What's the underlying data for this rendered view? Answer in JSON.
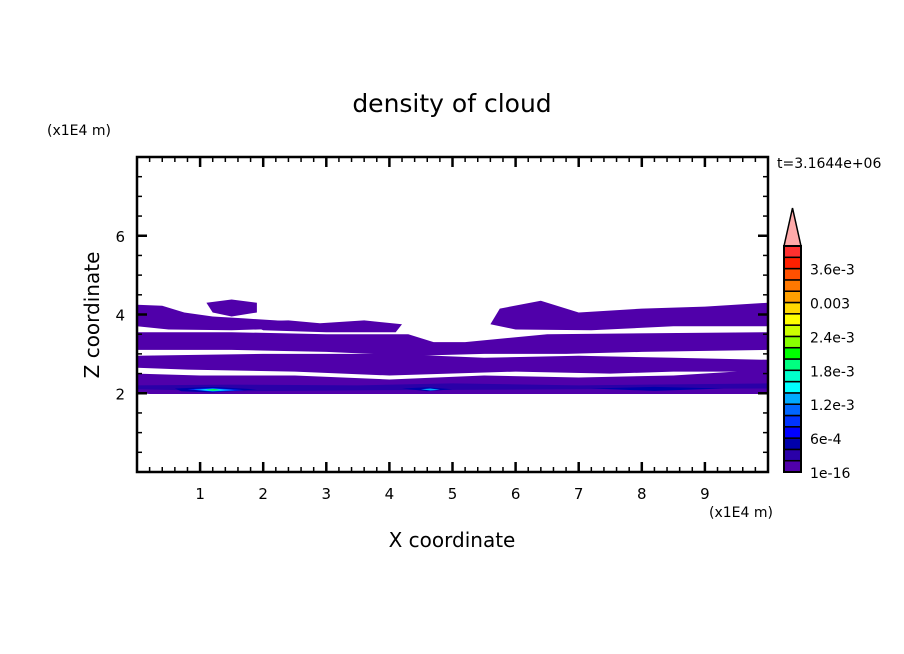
{
  "chart_data": {
    "type": "heatmap",
    "subtype": "filled-contour",
    "title": "density of cloud",
    "xlabel": "X coordinate",
    "ylabel": "Z coordinate",
    "x_unit": "(x1E4 m)",
    "y_unit": "(x1E4 m)",
    "time_label": "t=3.1644e+06",
    "xlim": [
      0,
      10
    ],
    "ylim": [
      0,
      8
    ],
    "x_ticks": [
      1,
      2,
      3,
      4,
      5,
      6,
      7,
      8,
      9
    ],
    "x_tick_labels": [
      "1",
      "2",
      "3",
      "4",
      "5",
      "6",
      "7",
      "8",
      "9"
    ],
    "y_ticks": [
      2,
      4,
      6
    ],
    "y_tick_labels": [
      "2",
      "4",
      "6"
    ],
    "x_minor_step": 0.2,
    "y_minor_step": 0.5,
    "grid": false,
    "colorbar": {
      "placement": "right",
      "levels_min": 1e-16,
      "level_step": 0.0002,
      "extend": "max",
      "extend_color": "#ffaaaa",
      "colors": [
        "#5000aa",
        "#2a00a8",
        "#0000aa",
        "#0000ff",
        "#0033ff",
        "#0066ff",
        "#00aaff",
        "#00ffff",
        "#00ffcc",
        "#00ff80",
        "#00ff00",
        "#88ff00",
        "#ccff00",
        "#ffff00",
        "#ffd800",
        "#ffa000",
        "#ff7800",
        "#ff5000",
        "#ff2000",
        "#ff3030"
      ],
      "labels": [
        {
          "band": 0,
          "text": "1e-16"
        },
        {
          "band": 3,
          "text": "6e-4"
        },
        {
          "band": 6,
          "text": "1.2e-3"
        },
        {
          "band": 9,
          "text": "1.8e-3"
        },
        {
          "band": 12,
          "text": "2.4e-3"
        },
        {
          "band": 15,
          "text": "0.003"
        },
        {
          "band": 18,
          "text": "3.6e-3"
        }
      ]
    },
    "regions": [
      {
        "level": 0,
        "points": [
          [
            0,
            4.25
          ],
          [
            0.4,
            4.22
          ],
          [
            0.75,
            4.05
          ],
          [
            1.2,
            3.95
          ],
          [
            1.7,
            3.9
          ],
          [
            2.2,
            3.85
          ],
          [
            2.6,
            3.8
          ],
          [
            2.5,
            3.65
          ],
          [
            1.5,
            3.6
          ],
          [
            0.5,
            3.62
          ],
          [
            0,
            3.7
          ]
        ]
      },
      {
        "level": 0,
        "points": [
          [
            1.1,
            4.3
          ],
          [
            1.5,
            4.38
          ],
          [
            1.9,
            4.3
          ],
          [
            1.9,
            4.05
          ],
          [
            1.5,
            3.95
          ],
          [
            1.2,
            4.05
          ]
        ]
      },
      {
        "level": 0,
        "points": [
          [
            1.7,
            3.82
          ],
          [
            2.4,
            3.85
          ],
          [
            2.9,
            3.78
          ],
          [
            3.6,
            3.85
          ],
          [
            4.2,
            3.75
          ],
          [
            4.1,
            3.55
          ],
          [
            3.0,
            3.55
          ],
          [
            2.0,
            3.6
          ]
        ]
      },
      {
        "level": 0,
        "points": [
          [
            0,
            3.55
          ],
          [
            1.5,
            3.55
          ],
          [
            3.0,
            3.5
          ],
          [
            4.3,
            3.5
          ],
          [
            4.7,
            3.3
          ],
          [
            5.2,
            3.3
          ],
          [
            6.5,
            3.5
          ],
          [
            10,
            3.55
          ],
          [
            10,
            3.1
          ],
          [
            8.0,
            3.05
          ],
          [
            6.8,
            3.0
          ],
          [
            5.5,
            3.0
          ],
          [
            4.4,
            2.95
          ],
          [
            3.0,
            3.05
          ],
          [
            1.5,
            3.1
          ],
          [
            0,
            3.1
          ]
        ]
      },
      {
        "level": 0,
        "points": [
          [
            5.75,
            4.15
          ],
          [
            6.4,
            4.35
          ],
          [
            7.0,
            4.05
          ],
          [
            8.0,
            4.15
          ],
          [
            9.0,
            4.2
          ],
          [
            10,
            4.3
          ],
          [
            10,
            3.7
          ],
          [
            8.5,
            3.7
          ],
          [
            7.2,
            3.6
          ],
          [
            6.0,
            3.62
          ],
          [
            5.6,
            3.75
          ]
        ]
      },
      {
        "level": 0,
        "points": [
          [
            0,
            2.95
          ],
          [
            2.0,
            3.0
          ],
          [
            4.0,
            3.0
          ],
          [
            5.5,
            2.9
          ],
          [
            7.0,
            2.95
          ],
          [
            8.5,
            2.9
          ],
          [
            10,
            2.85
          ],
          [
            10,
            2.55
          ],
          [
            8.5,
            2.55
          ],
          [
            7.5,
            2.5
          ],
          [
            6.0,
            2.55
          ],
          [
            4.0,
            2.45
          ],
          [
            2.5,
            2.55
          ],
          [
            0.8,
            2.6
          ],
          [
            0,
            2.65
          ]
        ]
      },
      {
        "level": 0,
        "points": [
          [
            0,
            2.5
          ],
          [
            1.0,
            2.45
          ],
          [
            2.5,
            2.45
          ],
          [
            4.0,
            2.35
          ],
          [
            5.5,
            2.45
          ],
          [
            7.0,
            2.4
          ],
          [
            8.5,
            2.45
          ],
          [
            10,
            2.6
          ],
          [
            10,
            1.98
          ],
          [
            8.0,
            1.98
          ],
          [
            6.0,
            1.98
          ],
          [
            4.2,
            1.98
          ],
          [
            2.0,
            1.98
          ],
          [
            0.2,
            1.98
          ],
          [
            0,
            2.02
          ]
        ]
      },
      {
        "level": 1,
        "points": [
          [
            0,
            2.2
          ],
          [
            1.5,
            2.22
          ],
          [
            3.5,
            2.2
          ],
          [
            5.0,
            2.25
          ],
          [
            7.0,
            2.2
          ],
          [
            10,
            2.25
          ],
          [
            10,
            2.12
          ],
          [
            7.0,
            2.1
          ],
          [
            4.0,
            2.08
          ],
          [
            1.5,
            2.05
          ],
          [
            0,
            2.1
          ]
        ]
      },
      {
        "level": 2,
        "points": [
          [
            0.6,
            2.12
          ],
          [
            1.2,
            2.16
          ],
          [
            1.9,
            2.1
          ],
          [
            1.2,
            2.02
          ],
          [
            0.7,
            2.05
          ]
        ]
      },
      {
        "level": 2,
        "points": [
          [
            4.2,
            2.12
          ],
          [
            4.6,
            2.15
          ],
          [
            5.0,
            2.1
          ],
          [
            4.6,
            2.05
          ]
        ]
      },
      {
        "level": 2,
        "points": [
          [
            7.2,
            2.12
          ],
          [
            8.2,
            2.16
          ],
          [
            9.3,
            2.12
          ],
          [
            8.2,
            2.06
          ]
        ]
      },
      {
        "level": 4,
        "points": [
          [
            0.8,
            2.1
          ],
          [
            1.2,
            2.13
          ],
          [
            1.7,
            2.08
          ],
          [
            1.2,
            2.04
          ]
        ]
      },
      {
        "level": 6,
        "points": [
          [
            0.9,
            2.09
          ],
          [
            1.2,
            2.12
          ],
          [
            1.55,
            2.08
          ],
          [
            1.2,
            2.05
          ]
        ]
      },
      {
        "level": 7,
        "points": [
          [
            1.0,
            2.085
          ],
          [
            1.2,
            2.105
          ],
          [
            1.4,
            2.08
          ],
          [
            1.2,
            2.06
          ]
        ]
      },
      {
        "level": 10,
        "points": [
          [
            1.1,
            2.085
          ],
          [
            1.22,
            2.1
          ],
          [
            1.32,
            2.08
          ],
          [
            1.2,
            2.07
          ]
        ]
      },
      {
        "level": 6,
        "points": [
          [
            4.5,
            2.1
          ],
          [
            4.65,
            2.12
          ],
          [
            4.8,
            2.09
          ],
          [
            4.65,
            2.07
          ]
        ]
      }
    ]
  }
}
